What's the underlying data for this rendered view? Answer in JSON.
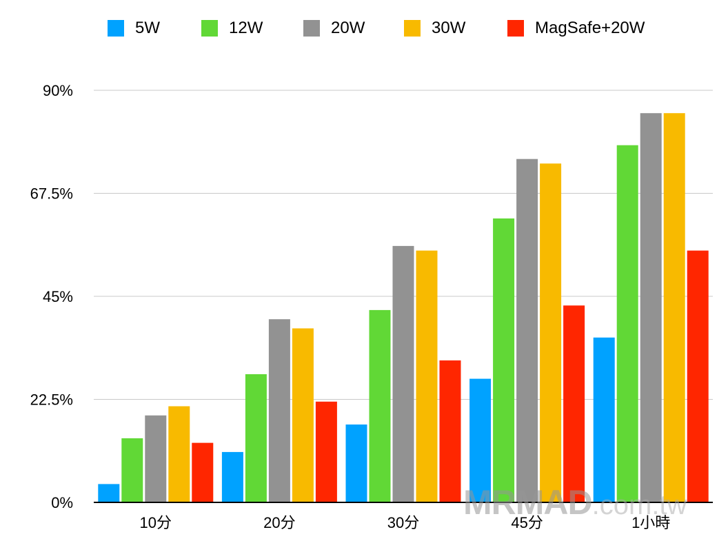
{
  "chart_data": {
    "type": "bar",
    "categories": [
      "10分",
      "20分",
      "30分",
      "45分",
      "1小時"
    ],
    "series": [
      {
        "name": "5W",
        "color": "#00a2ff",
        "values": [
          4,
          11,
          17,
          27,
          36
        ]
      },
      {
        "name": "12W",
        "color": "#61d836",
        "values": [
          14,
          28,
          42,
          62,
          78
        ]
      },
      {
        "name": "20W",
        "color": "#929292",
        "values": [
          19,
          40,
          56,
          75,
          85
        ]
      },
      {
        "name": "30W",
        "color": "#f8ba00",
        "values": [
          21,
          38,
          55,
          74,
          85
        ]
      },
      {
        "name": "MagSafe+20W",
        "color": "#ff2600",
        "values": [
          13,
          22,
          31,
          43,
          55
        ]
      }
    ],
    "yticks": [
      "0%",
      "22.5%",
      "45%",
      "67.5%",
      "90%"
    ],
    "ytick_values": [
      0,
      22.5,
      45,
      67.5,
      90
    ],
    "ylim": [
      0,
      90
    ],
    "grid": true,
    "legend_position": "top"
  },
  "watermark": {
    "main": "MRMAD",
    "sub": ".com.tw"
  }
}
